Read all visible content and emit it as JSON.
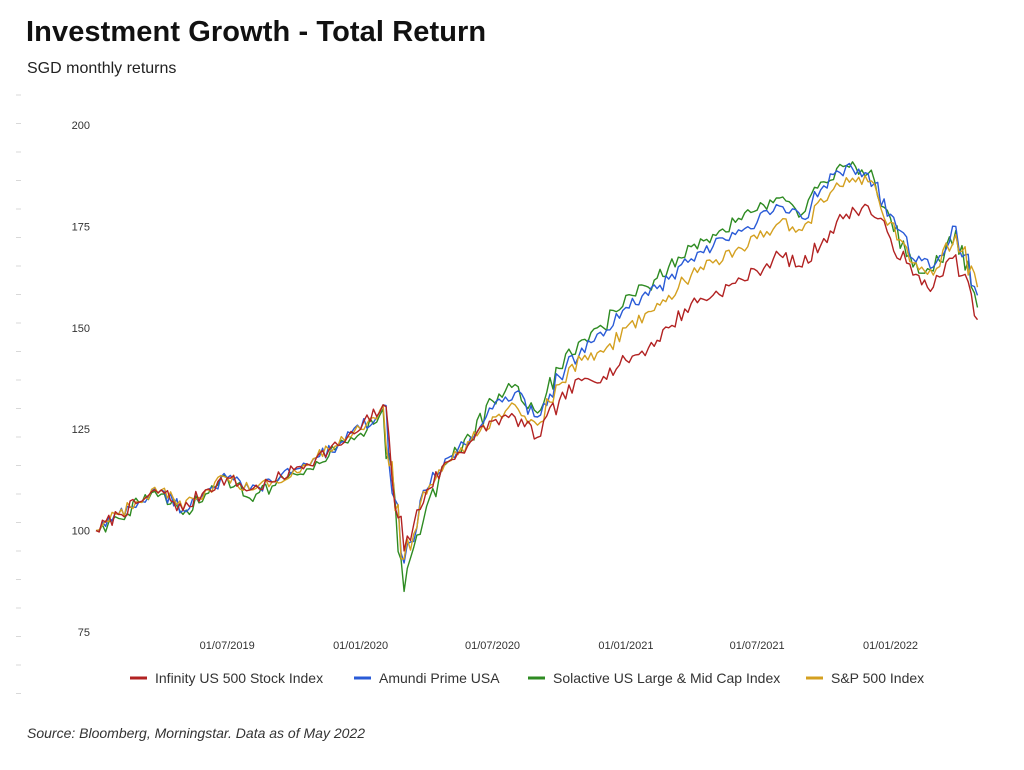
{
  "header": {
    "title": "Investment Growth - Total Return",
    "subtitle": "SGD monthly returns"
  },
  "footer": {
    "source": "Source: Bloomberg, Morningstar. Data as of May 2022"
  },
  "chart_data": {
    "type": "line",
    "title": "Investment Growth - Total Return",
    "subtitle": "SGD monthly returns",
    "xlabel": "",
    "ylabel": "",
    "xlim": [
      "2019-01-01",
      "2022-06-01"
    ],
    "ylim": [
      75,
      200
    ],
    "yticks": [
      75,
      100,
      125,
      150,
      175,
      200
    ],
    "xticks": [
      "01/07/2019",
      "01/01/2020",
      "01/07/2020",
      "01/01/2021",
      "01/07/2021",
      "01/01/2022"
    ],
    "xtick_dates": [
      "2019-07-01",
      "2020-01-01",
      "2020-07-01",
      "2021-01-01",
      "2021-07-01",
      "2022-01-01"
    ],
    "grid": false,
    "legend_position": "bottom",
    "x": [
      "2019-01-01",
      "2019-02-01",
      "2019-03-01",
      "2019-04-01",
      "2019-05-01",
      "2019-06-01",
      "2019-07-01",
      "2019-08-01",
      "2019-09-01",
      "2019-10-01",
      "2019-11-01",
      "2019-12-01",
      "2020-01-01",
      "2020-02-01",
      "2020-03-01",
      "2020-04-01",
      "2020-05-01",
      "2020-06-01",
      "2020-07-01",
      "2020-08-01",
      "2020-09-01",
      "2020-10-01",
      "2020-11-01",
      "2020-12-01",
      "2021-01-01",
      "2021-02-01",
      "2021-03-01",
      "2021-04-01",
      "2021-05-01",
      "2021-06-01",
      "2021-07-01",
      "2021-08-01",
      "2021-09-01",
      "2021-10-01",
      "2021-11-01",
      "2021-12-01",
      "2022-01-01",
      "2022-02-01",
      "2022-03-01",
      "2022-04-01",
      "2022-05-01"
    ],
    "series": [
      {
        "name": "Infinity US 500 Stock Index",
        "color": "#b22222",
        "values": [
          100,
          104,
          107,
          110,
          105,
          110,
          113,
          110,
          112,
          115,
          118,
          121,
          125,
          131,
          95,
          110,
          117,
          122,
          127,
          128,
          123,
          132,
          137,
          138,
          142,
          145,
          150,
          156,
          158,
          161,
          164,
          168,
          165,
          172,
          178,
          180,
          172,
          163,
          160,
          168,
          152
        ]
      },
      {
        "name": "Amundi Prime USA",
        "color": "#2a5bd7",
        "values": [
          100,
          104,
          107,
          110,
          105,
          110,
          113,
          110,
          112,
          115,
          118,
          121,
          125,
          131,
          92,
          110,
          118,
          123,
          130,
          134,
          128,
          138,
          145,
          148,
          155,
          158,
          162,
          167,
          170,
          173,
          176,
          180,
          177,
          185,
          190,
          188,
          178,
          167,
          165,
          175,
          158
        ]
      },
      {
        "name": "Solactive US Large & Mid Cap Index",
        "color": "#2e8b22",
        "values": [
          100,
          103,
          107,
          109,
          104,
          109,
          113,
          108,
          111,
          114,
          117,
          121,
          124,
          130,
          85,
          106,
          117,
          123,
          132,
          136,
          129,
          140,
          147,
          150,
          158,
          160,
          165,
          170,
          173,
          176,
          179,
          182,
          178,
          186,
          190,
          188,
          177,
          165,
          164,
          174,
          155
        ]
      },
      {
        "name": "S&P 500 Index",
        "color": "#d4a020",
        "values": [
          100,
          104,
          107,
          110,
          105,
          110,
          113,
          110,
          112,
          115,
          118,
          121,
          125,
          131,
          93,
          109,
          117,
          122,
          128,
          131,
          126,
          136,
          142,
          144,
          150,
          154,
          158,
          163,
          166,
          169,
          172,
          176,
          174,
          181,
          187,
          186,
          176,
          166,
          163,
          173,
          160
        ]
      }
    ]
  }
}
